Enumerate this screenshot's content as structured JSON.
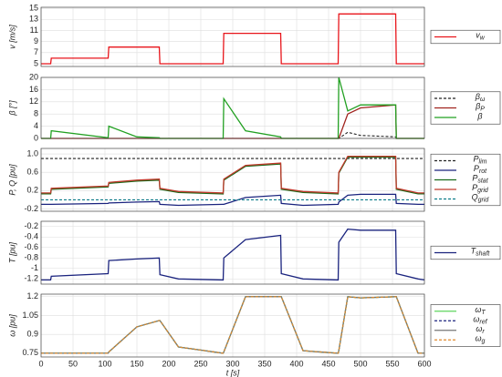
{
  "chart_data": [
    {
      "type": "line",
      "ylabel": "v [m/s]",
      "xlim": [
        0,
        600
      ],
      "ylim": [
        4.5,
        15.2
      ],
      "yticks": [
        5,
        7,
        9,
        11,
        13,
        15
      ],
      "grid": true,
      "x": [
        0,
        15,
        16,
        105,
        106,
        150,
        185,
        186,
        215,
        285,
        286,
        320,
        375,
        376,
        410,
        465,
        466,
        480,
        500,
        555,
        556,
        590,
        600
      ],
      "series": [
        {
          "name": "vw",
          "color": "#e8151b",
          "dash": false,
          "values": [
            5,
            5,
            6,
            6,
            8,
            8,
            8,
            5,
            5,
            5,
            10.5,
            10.5,
            10.5,
            5,
            5,
            5,
            14,
            14,
            14,
            14,
            5,
            5,
            5
          ]
        }
      ]
    },
    {
      "type": "line",
      "ylabel": "β [°]",
      "xlim": [
        0,
        600
      ],
      "ylim": [
        0,
        20
      ],
      "yticks": [
        0,
        4,
        8,
        12,
        16,
        20
      ],
      "grid": true,
      "x": [
        0,
        15,
        16,
        105,
        106,
        150,
        185,
        186,
        215,
        285,
        286,
        320,
        375,
        376,
        410,
        465,
        466,
        480,
        500,
        555,
        556,
        590,
        600
      ],
      "series": [
        {
          "name": "βω",
          "color": "#222222",
          "dash": true,
          "values": [
            0,
            0,
            0,
            0,
            0,
            0,
            0,
            0,
            0,
            0,
            0,
            0,
            0,
            0,
            0,
            0,
            0,
            2,
            1,
            0.5,
            0,
            0,
            0
          ]
        },
        {
          "name": "βP",
          "color": "#a0231e",
          "dash": false,
          "values": [
            0,
            0,
            0,
            0,
            0,
            0,
            0,
            0,
            0,
            0,
            0,
            0,
            0,
            0,
            0,
            0,
            0,
            8,
            10,
            11,
            0,
            0,
            0
          ]
        },
        {
          "name": "β",
          "color": "#22a022",
          "dash": false,
          "values": [
            0,
            0,
            2.5,
            0.2,
            4,
            0.5,
            0.2,
            0,
            0,
            0,
            13,
            2.5,
            0.5,
            0,
            0,
            0,
            20,
            9,
            11,
            11,
            0,
            0,
            0
          ]
        }
      ]
    },
    {
      "type": "line",
      "ylabel": "P, Q [pu]",
      "xlim": [
        0,
        600
      ],
      "ylim": [
        -0.25,
        1.12
      ],
      "yticks": [
        -0.2,
        0.2,
        0.6,
        {
          "value": 1,
          "label": "1.0"
        }
      ],
      "grid": true,
      "x": [
        0,
        15,
        16,
        105,
        106,
        150,
        185,
        186,
        215,
        285,
        286,
        320,
        375,
        376,
        410,
        465,
        466,
        480,
        500,
        555,
        556,
        590,
        600
      ],
      "series": [
        {
          "name": "Plim",
          "color": "#222222",
          "dash": true,
          "values": [
            0.9,
            0.9,
            0.9,
            0.9,
            0.9,
            0.9,
            0.9,
            0.9,
            0.9,
            0.9,
            0.9,
            0.9,
            0.9,
            0.9,
            0.9,
            0.9,
            0.9,
            0.9,
            0.9,
            0.9,
            0.9,
            0.9,
            0.9
          ]
        },
        {
          "name": "Prot",
          "color": "#1a237e",
          "dash": false,
          "values": [
            -0.1,
            -0.1,
            -0.1,
            -0.08,
            -0.07,
            -0.05,
            -0.04,
            -0.1,
            -0.12,
            -0.1,
            -0.1,
            0.05,
            0.1,
            -0.08,
            -0.12,
            -0.1,
            -0.05,
            0.1,
            0.12,
            0.12,
            -0.08,
            -0.1,
            -0.1
          ]
        },
        {
          "name": "Pstat",
          "color": "#1b6b1b",
          "dash": false,
          "values": [
            0.13,
            0.13,
            0.23,
            0.28,
            0.36,
            0.41,
            0.43,
            0.23,
            0.16,
            0.13,
            0.43,
            0.73,
            0.78,
            0.23,
            0.16,
            0.13,
            0.58,
            0.93,
            0.93,
            0.93,
            0.23,
            0.13,
            0.13
          ]
        },
        {
          "name": "Pgrid",
          "color": "#c0392b",
          "dash": false,
          "values": [
            0.15,
            0.15,
            0.25,
            0.3,
            0.38,
            0.43,
            0.45,
            0.25,
            0.18,
            0.15,
            0.45,
            0.75,
            0.8,
            0.25,
            0.18,
            0.15,
            0.6,
            0.95,
            0.95,
            0.95,
            0.25,
            0.15,
            0.15
          ]
        },
        {
          "name": "Qgrid",
          "color": "#0c7c8a",
          "dash": true,
          "values": [
            0,
            0,
            0,
            0,
            0,
            0,
            0,
            0,
            0,
            0,
            0,
            0,
            0,
            0,
            0,
            0,
            0,
            0,
            0,
            0,
            0,
            0,
            0
          ]
        }
      ]
    },
    {
      "type": "line",
      "ylabel": "T [pu]",
      "xlim": [
        0,
        600
      ],
      "ylim": [
        -1.3,
        -0.1
      ],
      "yticks": [
        -1.2,
        -1,
        -0.8,
        -0.6,
        -0.4,
        -0.2
      ],
      "grid": true,
      "x": [
        0,
        15,
        16,
        105,
        106,
        150,
        185,
        186,
        215,
        285,
        286,
        320,
        375,
        376,
        410,
        465,
        466,
        480,
        500,
        555,
        556,
        590,
        600
      ],
      "series": [
        {
          "name": "Tshaft",
          "color": "#1a237e",
          "dash": false,
          "values": [
            -1.22,
            -1.22,
            -1.15,
            -1.1,
            -0.85,
            -0.82,
            -0.8,
            -1.12,
            -1.2,
            -1.22,
            -0.8,
            -0.45,
            -0.37,
            -1.1,
            -1.2,
            -1.22,
            -0.5,
            -0.25,
            -0.27,
            -0.27,
            -1.1,
            -1.2,
            -1.22
          ]
        }
      ]
    },
    {
      "type": "line",
      "ylabel": "ω [pu]",
      "xlabel": "t [s]",
      "xlim": [
        0,
        600
      ],
      "xticks": [
        0,
        50,
        100,
        150,
        200,
        250,
        300,
        350,
        400,
        450,
        500,
        550,
        600
      ],
      "ylim": [
        0.72,
        1.22
      ],
      "yticks": [
        0.75,
        0.9,
        1.05,
        1.2
      ],
      "grid": true,
      "x": [
        0,
        15,
        16,
        105,
        106,
        150,
        185,
        186,
        215,
        285,
        286,
        320,
        375,
        376,
        410,
        465,
        466,
        480,
        500,
        555,
        556,
        590,
        600
      ],
      "series": [
        {
          "name": "ωT",
          "color": "#5ed45e",
          "dash": false,
          "values": [
            0.75,
            0.75,
            0.75,
            0.75,
            0.76,
            0.96,
            1.01,
            1.01,
            0.8,
            0.75,
            0.76,
            1.2,
            1.2,
            1.2,
            0.77,
            0.75,
            0.77,
            1.2,
            1.19,
            1.2,
            1.2,
            0.75,
            0.75
          ]
        },
        {
          "name": "ωref",
          "color": "#1a237e",
          "dash": true,
          "values": [
            0.75,
            0.75,
            0.75,
            0.75,
            0.76,
            0.96,
            1.01,
            1.01,
            0.8,
            0.75,
            0.76,
            1.2,
            1.2,
            1.2,
            0.77,
            0.75,
            0.77,
            1.2,
            1.19,
            1.2,
            1.2,
            0.75,
            0.75
          ]
        },
        {
          "name": "ωr",
          "color": "#777777",
          "dash": false,
          "values": [
            0.75,
            0.75,
            0.75,
            0.75,
            0.76,
            0.96,
            1.01,
            1.01,
            0.8,
            0.75,
            0.76,
            1.2,
            1.2,
            1.2,
            0.77,
            0.75,
            0.77,
            1.2,
            1.19,
            1.2,
            1.2,
            0.75,
            0.75
          ]
        },
        {
          "name": "ωg",
          "color": "#e08a2c",
          "dash": true,
          "values": [
            0.75,
            0.75,
            0.75,
            0.75,
            0.76,
            0.96,
            1.01,
            1.01,
            0.8,
            0.75,
            0.76,
            1.2,
            1.2,
            1.2,
            0.77,
            0.75,
            0.77,
            1.2,
            1.19,
            1.2,
            1.2,
            0.75,
            0.75
          ]
        }
      ]
    }
  ]
}
